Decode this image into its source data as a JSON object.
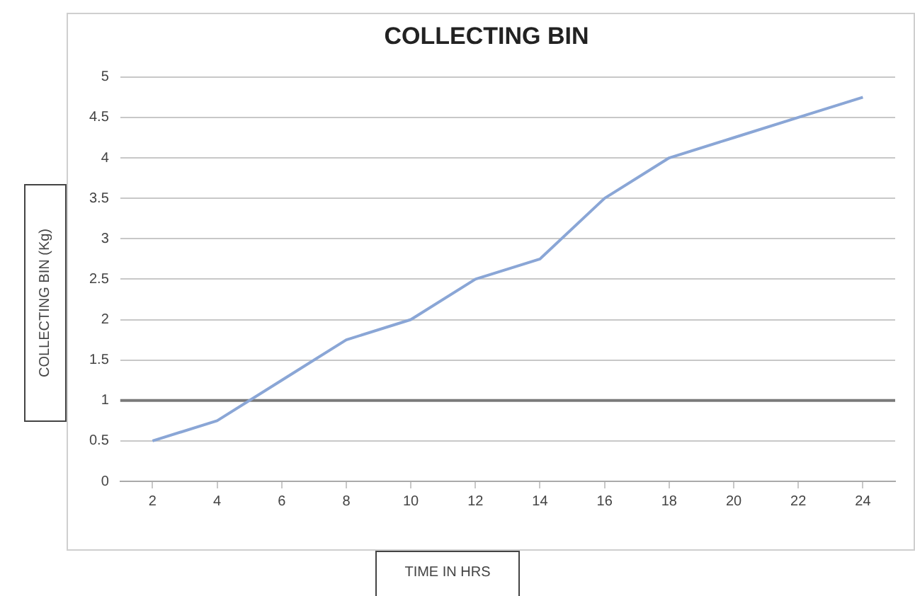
{
  "chart_data": {
    "type": "line",
    "title": "COLLECTING BIN",
    "xlabel": "TIME IN HRS",
    "ylabel": "COLLECTING BIN (Kg)",
    "x": [
      2,
      4,
      6,
      8,
      10,
      12,
      14,
      16,
      18,
      20,
      22,
      24
    ],
    "series": [
      {
        "color": "#8aa6d6",
        "values": [
          0.5,
          0.75,
          1.25,
          1.75,
          2,
          2.5,
          2.75,
          3.5,
          4,
          4.25,
          4.5,
          4.75
        ]
      }
    ],
    "xlim": [
      1,
      25
    ],
    "xticks": [
      2,
      4,
      6,
      8,
      10,
      12,
      14,
      16,
      18,
      20,
      22,
      24
    ],
    "ylim": [
      0,
      5
    ],
    "yticks": [
      0,
      0.5,
      1,
      1.5,
      2,
      2.5,
      3,
      3.5,
      4,
      4.5,
      5
    ],
    "ref_lines": [
      {
        "axis": "y",
        "value": 1,
        "color": "#7a7a7a"
      }
    ],
    "grid": "y",
    "legend": false,
    "marker": "none",
    "line_style": "solid"
  }
}
